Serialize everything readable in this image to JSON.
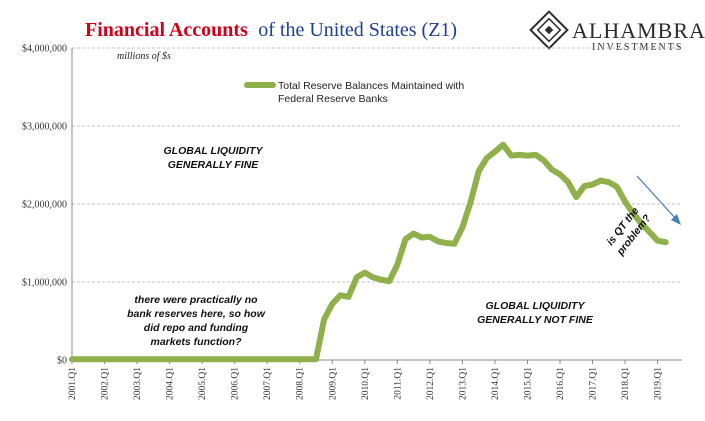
{
  "header": {
    "title_part1": "Financial Accounts",
    "title_part2": "of the United States (Z1)"
  },
  "logo": {
    "name": "ALHAMBRA",
    "sub": "INVESTMENTS",
    "icon": "alhambra-diamond-logo-icon"
  },
  "colors": {
    "series": "#8fb04a",
    "title_red": "#d0021b",
    "title_blue": "#1f3f8f",
    "arrow": "#4a7ebb",
    "grid": "#b0b0b0"
  },
  "annotations": {
    "units": "millions of $s",
    "liquidity_fine": [
      "GLOBAL LIQUIDITY",
      "GENERALLY FINE"
    ],
    "liquidity_not_fine": [
      "GLOBAL LIQUIDITY",
      "GENERALLY NOT FINE"
    ],
    "repo_question": [
      "there were practically no",
      "bank reserves here, so how",
      "did repo and funding",
      "markets function?"
    ],
    "qt_question": [
      "is QT the",
      "problem?"
    ]
  },
  "chart_data": {
    "type": "line",
    "title": "",
    "xlabel": "",
    "ylabel": "",
    "ylim": [
      0,
      4000000
    ],
    "yticks": [
      0,
      1000000,
      2000000,
      3000000,
      4000000
    ],
    "ytick_labels": [
      "$0",
      "$1,000,000",
      "$2,000,000",
      "$3,000,000",
      "$4,000,000"
    ],
    "xtick_labels": [
      "2001.Q1",
      "2002.Q1",
      "2003.Q1",
      "2004.Q1",
      "2005.Q1",
      "2006.Q1",
      "2007.Q1",
      "2008.Q1",
      "2009.Q1",
      "2010.Q1",
      "2011.Q1",
      "2012.Q1",
      "2013.Q1",
      "2014.Q1",
      "2015.Q1",
      "2016.Q1",
      "2017.Q1",
      "2018.Q1",
      "2019.Q1"
    ],
    "grid": true,
    "legend": "top-center",
    "series": [
      {
        "name": "Total Reserve Balances Maintained with Federal Reserve Banks",
        "color": "#8fb04a",
        "x": [
          2001.0,
          2008.5,
          2008.75,
          2009.0,
          2009.25,
          2009.5,
          2009.75,
          2010.0,
          2010.25,
          2010.5,
          2010.75,
          2011.0,
          2011.25,
          2011.5,
          2011.75,
          2012.0,
          2012.25,
          2012.5,
          2012.75,
          2013.0,
          2013.25,
          2013.5,
          2013.75,
          2014.0,
          2014.25,
          2014.5,
          2014.75,
          2015.0,
          2015.25,
          2015.5,
          2015.75,
          2016.0,
          2016.25,
          2016.5,
          2016.75,
          2017.0,
          2017.25,
          2017.5,
          2017.75,
          2018.0,
          2018.25,
          2018.5,
          2018.75,
          2019.0,
          2019.25
        ],
        "values": [
          10000,
          10000,
          520000,
          720000,
          830000,
          810000,
          1060000,
          1120000,
          1060000,
          1030000,
          1010000,
          1220000,
          1550000,
          1620000,
          1570000,
          1580000,
          1520000,
          1500000,
          1490000,
          1700000,
          2020000,
          2420000,
          2590000,
          2670000,
          2760000,
          2620000,
          2630000,
          2620000,
          2630000,
          2560000,
          2440000,
          2380000,
          2280000,
          2090000,
          2230000,
          2250000,
          2300000,
          2280000,
          2220000,
          2030000,
          1880000,
          1750000,
          1640000,
          1530000,
          1510000
        ]
      }
    ]
  }
}
